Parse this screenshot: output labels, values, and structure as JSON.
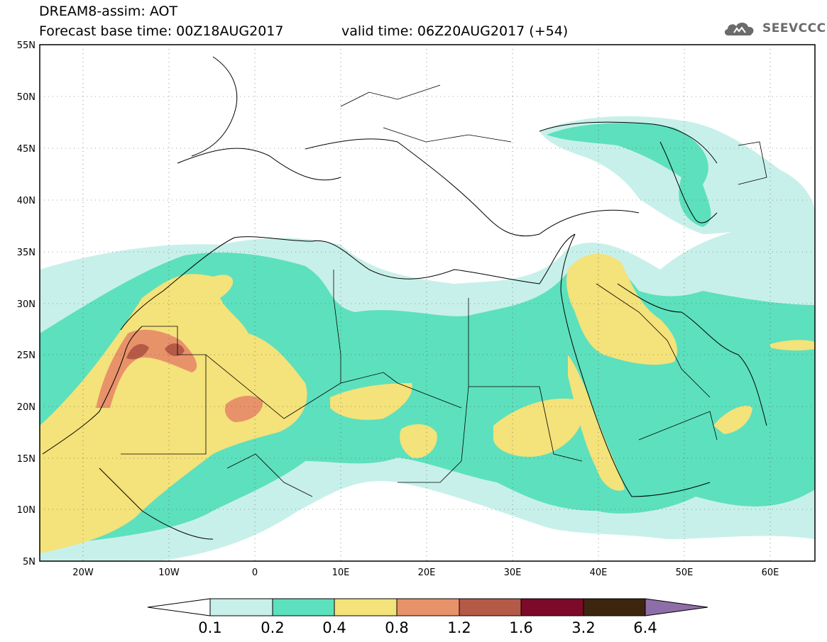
{
  "header": {
    "line1": "DREAM8-assim: AOT",
    "line2": "Forecast base time: 00Z18AUG2017",
    "valid": "valid time: 06Z20AUG2017 (+54)"
  },
  "logo": {
    "text": "SEEVCCC",
    "icon": "cloud-icon"
  },
  "map": {
    "lon_range": [
      -25,
      65
    ],
    "lat_range": [
      5,
      55
    ],
    "lat_labels": [
      "55N",
      "50N",
      "45N",
      "40N",
      "35N",
      "30N",
      "25N",
      "20N",
      "15N",
      "10N",
      "5N"
    ],
    "lon_labels": [
      "20W",
      "10W",
      "0",
      "10E",
      "20E",
      "30E",
      "40E",
      "50E",
      "60E"
    ]
  },
  "legend": {
    "levels": [
      "0.1",
      "0.2",
      "0.4",
      "0.8",
      "1.2",
      "1.6",
      "3.2",
      "6.4"
    ],
    "colors": [
      "#ffffff",
      "#c8f0ea",
      "#5de0bd",
      "#f4e27a",
      "#e8926a",
      "#b65a48",
      "#7d0a28",
      "#3d2510",
      "#8e6ea8"
    ]
  }
}
